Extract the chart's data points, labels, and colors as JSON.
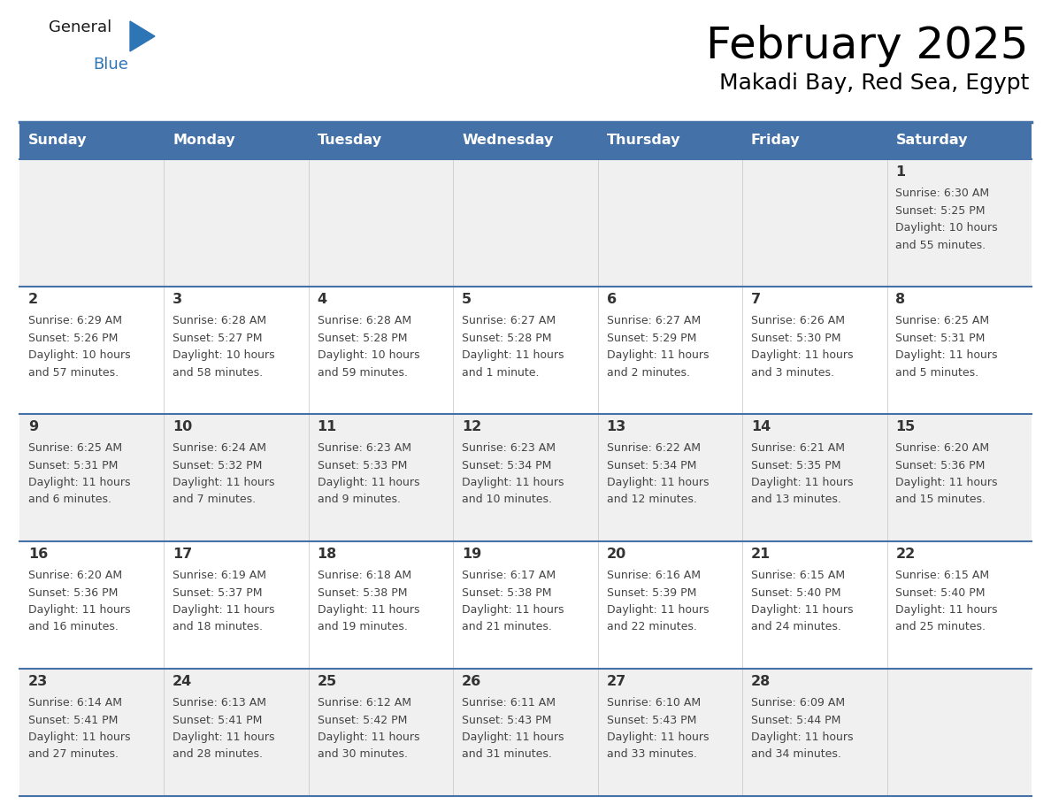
{
  "title": "February 2025",
  "subtitle": "Makadi Bay, Red Sea, Egypt",
  "header_bg_color": "#4472a8",
  "header_text_color": "#ffffff",
  "days_of_week": [
    "Sunday",
    "Monday",
    "Tuesday",
    "Wednesday",
    "Thursday",
    "Friday",
    "Saturday"
  ],
  "row_colors": [
    "#f0f0f0",
    "#ffffff"
  ],
  "border_color": "#4472a8",
  "text_color": "#444444",
  "day_num_color": "#333333",
  "calendar_data": [
    [
      null,
      null,
      null,
      null,
      null,
      null,
      {
        "day": "1",
        "sunrise": "6:30 AM",
        "sunset": "5:25 PM",
        "dl1": "Daylight: 10 hours",
        "dl2": "and 55 minutes."
      }
    ],
    [
      {
        "day": "2",
        "sunrise": "6:29 AM",
        "sunset": "5:26 PM",
        "dl1": "Daylight: 10 hours",
        "dl2": "and 57 minutes."
      },
      {
        "day": "3",
        "sunrise": "6:28 AM",
        "sunset": "5:27 PM",
        "dl1": "Daylight: 10 hours",
        "dl2": "and 58 minutes."
      },
      {
        "day": "4",
        "sunrise": "6:28 AM",
        "sunset": "5:28 PM",
        "dl1": "Daylight: 10 hours",
        "dl2": "and 59 minutes."
      },
      {
        "day": "5",
        "sunrise": "6:27 AM",
        "sunset": "5:28 PM",
        "dl1": "Daylight: 11 hours",
        "dl2": "and 1 minute."
      },
      {
        "day": "6",
        "sunrise": "6:27 AM",
        "sunset": "5:29 PM",
        "dl1": "Daylight: 11 hours",
        "dl2": "and 2 minutes."
      },
      {
        "day": "7",
        "sunrise": "6:26 AM",
        "sunset": "5:30 PM",
        "dl1": "Daylight: 11 hours",
        "dl2": "and 3 minutes."
      },
      {
        "day": "8",
        "sunrise": "6:25 AM",
        "sunset": "5:31 PM",
        "dl1": "Daylight: 11 hours",
        "dl2": "and 5 minutes."
      }
    ],
    [
      {
        "day": "9",
        "sunrise": "6:25 AM",
        "sunset": "5:31 PM",
        "dl1": "Daylight: 11 hours",
        "dl2": "and 6 minutes."
      },
      {
        "day": "10",
        "sunrise": "6:24 AM",
        "sunset": "5:32 PM",
        "dl1": "Daylight: 11 hours",
        "dl2": "and 7 minutes."
      },
      {
        "day": "11",
        "sunrise": "6:23 AM",
        "sunset": "5:33 PM",
        "dl1": "Daylight: 11 hours",
        "dl2": "and 9 minutes."
      },
      {
        "day": "12",
        "sunrise": "6:23 AM",
        "sunset": "5:34 PM",
        "dl1": "Daylight: 11 hours",
        "dl2": "and 10 minutes."
      },
      {
        "day": "13",
        "sunrise": "6:22 AM",
        "sunset": "5:34 PM",
        "dl1": "Daylight: 11 hours",
        "dl2": "and 12 minutes."
      },
      {
        "day": "14",
        "sunrise": "6:21 AM",
        "sunset": "5:35 PM",
        "dl1": "Daylight: 11 hours",
        "dl2": "and 13 minutes."
      },
      {
        "day": "15",
        "sunrise": "6:20 AM",
        "sunset": "5:36 PM",
        "dl1": "Daylight: 11 hours",
        "dl2": "and 15 minutes."
      }
    ],
    [
      {
        "day": "16",
        "sunrise": "6:20 AM",
        "sunset": "5:36 PM",
        "dl1": "Daylight: 11 hours",
        "dl2": "and 16 minutes."
      },
      {
        "day": "17",
        "sunrise": "6:19 AM",
        "sunset": "5:37 PM",
        "dl1": "Daylight: 11 hours",
        "dl2": "and 18 minutes."
      },
      {
        "day": "18",
        "sunrise": "6:18 AM",
        "sunset": "5:38 PM",
        "dl1": "Daylight: 11 hours",
        "dl2": "and 19 minutes."
      },
      {
        "day": "19",
        "sunrise": "6:17 AM",
        "sunset": "5:38 PM",
        "dl1": "Daylight: 11 hours",
        "dl2": "and 21 minutes."
      },
      {
        "day": "20",
        "sunrise": "6:16 AM",
        "sunset": "5:39 PM",
        "dl1": "Daylight: 11 hours",
        "dl2": "and 22 minutes."
      },
      {
        "day": "21",
        "sunrise": "6:15 AM",
        "sunset": "5:40 PM",
        "dl1": "Daylight: 11 hours",
        "dl2": "and 24 minutes."
      },
      {
        "day": "22",
        "sunrise": "6:15 AM",
        "sunset": "5:40 PM",
        "dl1": "Daylight: 11 hours",
        "dl2": "and 25 minutes."
      }
    ],
    [
      {
        "day": "23",
        "sunrise": "6:14 AM",
        "sunset": "5:41 PM",
        "dl1": "Daylight: 11 hours",
        "dl2": "and 27 minutes."
      },
      {
        "day": "24",
        "sunrise": "6:13 AM",
        "sunset": "5:41 PM",
        "dl1": "Daylight: 11 hours",
        "dl2": "and 28 minutes."
      },
      {
        "day": "25",
        "sunrise": "6:12 AM",
        "sunset": "5:42 PM",
        "dl1": "Daylight: 11 hours",
        "dl2": "and 30 minutes."
      },
      {
        "day": "26",
        "sunrise": "6:11 AM",
        "sunset": "5:43 PM",
        "dl1": "Daylight: 11 hours",
        "dl2": "and 31 minutes."
      },
      {
        "day": "27",
        "sunrise": "6:10 AM",
        "sunset": "5:43 PM",
        "dl1": "Daylight: 11 hours",
        "dl2": "and 33 minutes."
      },
      {
        "day": "28",
        "sunrise": "6:09 AM",
        "sunset": "5:44 PM",
        "dl1": "Daylight: 11 hours",
        "dl2": "and 34 minutes."
      },
      null
    ]
  ],
  "fig_width": 11.88,
  "fig_height": 9.18,
  "dpi": 100
}
